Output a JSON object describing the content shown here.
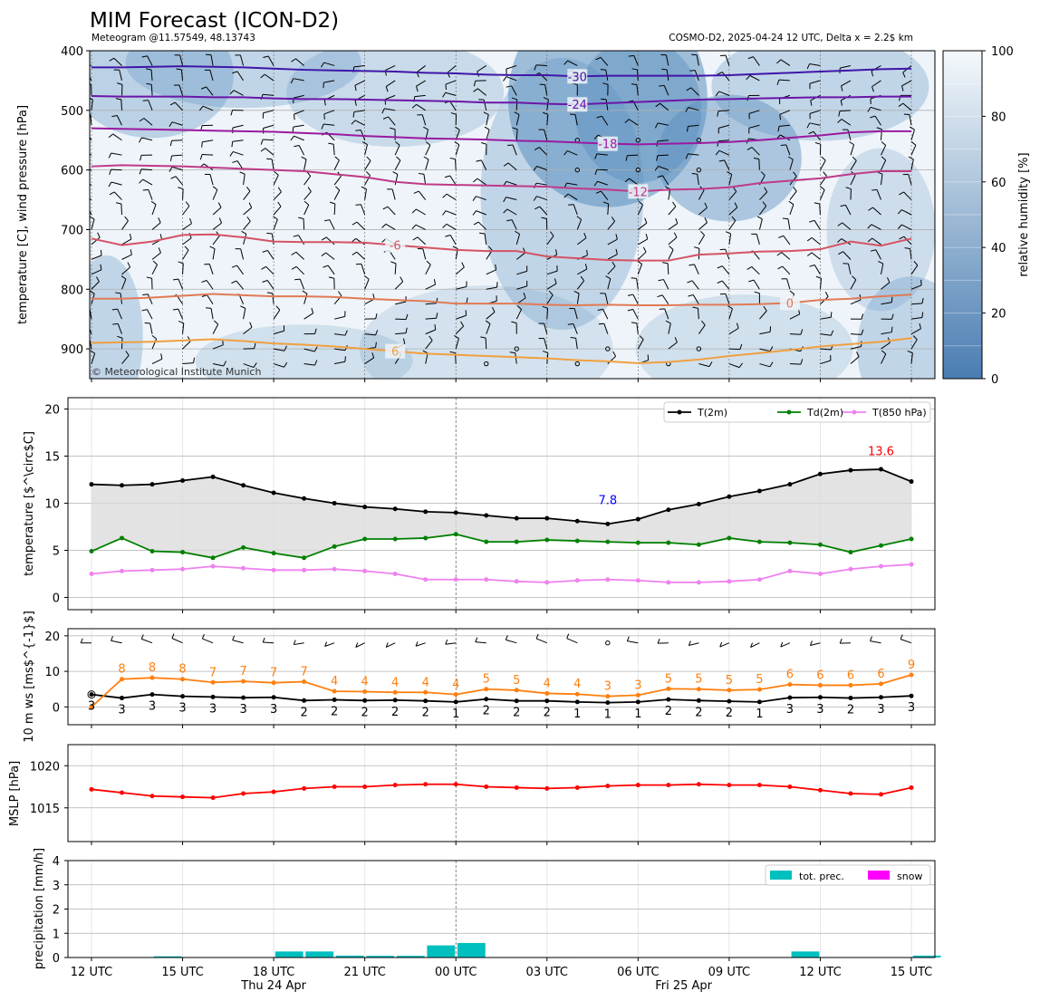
{
  "header": {
    "title": "MIM Forecast (ICON-D2)",
    "subtitle_left": "Meteogram @11.57549, 48.13743",
    "subtitle_right": "COSMO-D2, 2025-04-24 12 UTC, Delta x = 2.2$ km",
    "copyright": "© Meteorological Institute Munich"
  },
  "time_axis": {
    "x_range": [
      0,
      27
    ],
    "ticks": [
      {
        "x": 0,
        "label": "12 UTC"
      },
      {
        "x": 3,
        "label": "15 UTC"
      },
      {
        "x": 6,
        "label": "18 UTC"
      },
      {
        "x": 9,
        "label": "21 UTC"
      },
      {
        "x": 12,
        "label": "00 UTC"
      },
      {
        "x": 15,
        "label": "03 UTC"
      },
      {
        "x": 18,
        "label": "06 UTC"
      },
      {
        "x": 21,
        "label": "09 UTC"
      },
      {
        "x": 24,
        "label": "12 UTC"
      },
      {
        "x": 27,
        "label": "15 UTC"
      }
    ],
    "date_labels": [
      {
        "x": 6,
        "label": "Thu 24 Apr"
      },
      {
        "x": 19.5,
        "label": "Fri 25 Apr"
      }
    ],
    "day_boundary_x": 12
  },
  "chart_data": [
    {
      "type": "heatmap",
      "panel": "upper-air",
      "ylabel": "temperature [C], wind pressure [hPa]",
      "ylim": [
        950,
        400
      ],
      "y_inverted": true,
      "yticks": [
        400,
        500,
        600,
        700,
        800,
        900
      ],
      "colorbar": {
        "label": "relative humidity [%]",
        "range": [
          0,
          100
        ],
        "ticks": [
          0,
          20,
          40,
          60,
          80,
          100
        ]
      },
      "isotherms": [
        {
          "label": "-30",
          "color": "#3f16a8",
          "label_x": 16,
          "p": [
            428,
            428,
            427,
            426,
            427,
            428,
            430,
            432,
            433,
            434,
            435,
            437,
            438,
            440,
            441,
            441,
            443,
            442,
            442,
            442,
            442,
            441,
            439,
            437,
            435,
            433,
            431,
            430
          ]
        },
        {
          "label": "-24",
          "color": "#6a16a8",
          "label_x": 16,
          "p": [
            476,
            477,
            477,
            477,
            478,
            478,
            480,
            481,
            481,
            482,
            483,
            484,
            485,
            487,
            487,
            489,
            490,
            488,
            486,
            484,
            482,
            481,
            480,
            479,
            478,
            478,
            477,
            477
          ]
        },
        {
          "label": "-18",
          "color": "#9a1aa0",
          "label_x": 17,
          "p": [
            530,
            531,
            532,
            533,
            534,
            535,
            536,
            538,
            540,
            543,
            545,
            547,
            548,
            549,
            551,
            552,
            554,
            556,
            557,
            556,
            555,
            553,
            550,
            546,
            542,
            537,
            535,
            535
          ]
        },
        {
          "label": "-12",
          "color": "#bf3a88",
          "label_x": 18,
          "p": [
            594,
            592,
            593,
            594,
            596,
            598,
            600,
            602,
            607,
            612,
            620,
            624,
            625,
            626,
            627,
            628,
            631,
            633,
            636,
            633,
            632,
            629,
            622,
            618,
            614,
            607,
            602,
            602
          ]
        },
        {
          "label": "-6",
          "color": "#d45364",
          "label_x": 10,
          "p": [
            715,
            726,
            720,
            709,
            708,
            713,
            720,
            721,
            721,
            722,
            726,
            730,
            734,
            736,
            736,
            745,
            748,
            751,
            752,
            752,
            742,
            740,
            737,
            736,
            733,
            720,
            727,
            715
          ]
        },
        {
          "label": "0",
          "color": "#e07a55",
          "label_x": 23,
          "p": [
            816,
            816,
            814,
            811,
            808,
            810,
            812,
            812,
            813,
            816,
            818,
            820,
            824,
            824,
            824,
            826,
            827,
            826,
            827,
            827,
            826,
            826,
            825,
            823,
            818,
            816,
            812,
            809
          ]
        },
        {
          "label": "6",
          "color": "#f0a040",
          "label_x": 10,
          "p": [
            890,
            889,
            888,
            886,
            884,
            887,
            891,
            893,
            896,
            900,
            904,
            908,
            910,
            912,
            914,
            916,
            919,
            921,
            924,
            922,
            918,
            912,
            907,
            902,
            896,
            892,
            888,
            882
          ]
        }
      ]
    },
    {
      "type": "line",
      "panel": "temperature",
      "ylabel": "temperature [$^\\circ$C]",
      "ylim": [
        -1.3,
        21.2
      ],
      "yticks": [
        0,
        5,
        10,
        15,
        20
      ],
      "legend": "top-right",
      "series": [
        {
          "name": "T(2m)",
          "color": "#000000",
          "values": [
            12.0,
            11.9,
            12.0,
            12.4,
            12.8,
            11.9,
            11.1,
            10.5,
            10.0,
            9.6,
            9.4,
            9.1,
            9.0,
            8.7,
            8.4,
            8.4,
            8.1,
            7.8,
            8.3,
            9.3,
            9.9,
            10.7,
            11.3,
            12.0,
            13.1,
            13.5,
            13.6,
            12.3
          ]
        },
        {
          "name": "Td(2m)",
          "color": "#008000",
          "values": [
            4.9,
            6.3,
            4.9,
            4.8,
            4.2,
            5.3,
            4.7,
            4.2,
            5.4,
            6.2,
            6.2,
            6.3,
            6.7,
            5.9,
            5.9,
            6.1,
            6.0,
            5.9,
            5.8,
            5.8,
            5.6,
            6.3,
            5.9,
            5.8,
            5.6,
            4.8,
            5.5,
            6.2
          ]
        },
        {
          "name": "T(850 hPa)",
          "color": "#ee82ee",
          "values": [
            2.5,
            2.8,
            2.9,
            3.0,
            3.3,
            3.1,
            2.9,
            2.9,
            3.0,
            2.8,
            2.5,
            1.9,
            1.9,
            1.9,
            1.7,
            1.6,
            1.8,
            1.9,
            1.8,
            1.6,
            1.6,
            1.7,
            1.9,
            2.8,
            2.5,
            3.0,
            3.3,
            3.5
          ]
        }
      ],
      "annotations": [
        {
          "text": "7.8",
          "x": 17,
          "y": 9.9,
          "color": "#0000ff"
        },
        {
          "text": "13.6",
          "x": 26,
          "y": 15.1,
          "color": "#ff0000"
        }
      ]
    },
    {
      "type": "line",
      "panel": "wind",
      "ylabel": "10 m ws [ms$^{-1}$]",
      "ylim": [
        -5,
        22
      ],
      "yticks": [
        0,
        10,
        20
      ],
      "series": [
        {
          "name": "",
          "color": "#000000",
          "values": [
            3.5,
            2.5,
            3.5,
            3.0,
            2.8,
            2.6,
            2.7,
            1.8,
            2.0,
            1.8,
            1.9,
            1.7,
            1.4,
            2.2,
            1.7,
            1.7,
            1.4,
            1.2,
            1.4,
            2.1,
            1.8,
            1.6,
            1.4,
            2.6,
            2.7,
            2.5,
            2.7,
            3.1
          ]
        },
        {
          "name": "",
          "color": "#ff7f0e",
          "values": [
            0.0,
            7.8,
            8.2,
            7.8,
            6.9,
            7.2,
            6.8,
            7.1,
            4.4,
            4.3,
            4.1,
            4.1,
            3.5,
            5.0,
            4.7,
            3.8,
            3.6,
            3.0,
            3.3,
            5.1,
            5.0,
            4.7,
            4.9,
            6.3,
            6.1,
            6.1,
            6.5,
            9.0
          ]
        }
      ],
      "speed_labels": [
        "3",
        "3",
        "3",
        "3",
        "3",
        "3",
        "3",
        "2",
        "2",
        "2",
        "2",
        "2",
        "1",
        "2",
        "2",
        "2",
        "1",
        "1",
        "1",
        "2",
        "2",
        "2",
        "1",
        "3",
        "3",
        "2",
        "3",
        "3"
      ],
      "gust_labels": [
        "",
        "8",
        "8",
        "8",
        "7",
        "7",
        "7",
        "7",
        "4",
        "4",
        "4",
        "4",
        "4",
        "5",
        "5",
        "4",
        "4",
        "3",
        "3",
        "5",
        "5",
        "5",
        "5",
        "6",
        "6",
        "6",
        "6",
        "9"
      ]
    },
    {
      "type": "line",
      "panel": "mslp",
      "ylabel": "MSLP [hPa]",
      "ylim": [
        1011,
        1022.5
      ],
      "yticks": [
        1015,
        1020
      ],
      "series": [
        {
          "name": "",
          "color": "#ff0000",
          "values": [
            1017.2,
            1016.8,
            1016.4,
            1016.3,
            1016.2,
            1016.7,
            1016.9,
            1017.3,
            1017.5,
            1017.5,
            1017.7,
            1017.8,
            1017.8,
            1017.5,
            1017.4,
            1017.3,
            1017.4,
            1017.6,
            1017.7,
            1017.7,
            1017.8,
            1017.7,
            1017.7,
            1017.5,
            1017.1,
            1016.7,
            1016.6,
            1017.4
          ]
        }
      ]
    },
    {
      "type": "bar",
      "panel": "precipitation",
      "ylabel": "precipitation [mm/h]",
      "ylim": [
        0,
        4
      ],
      "yticks": [
        0,
        1,
        2,
        3,
        4
      ],
      "legend": "top-right",
      "series": [
        {
          "name": "tot. prec.",
          "color": "#00bfbf",
          "values": [
            0,
            0.02,
            0.05,
            0,
            0,
            0,
            0.25,
            0.25,
            0.08,
            0.07,
            0.07,
            0.5,
            0.6,
            0.02,
            0.02,
            0.02,
            0,
            0,
            0,
            0,
            0,
            0,
            0.02,
            0.25,
            0,
            0,
            0,
            0.08
          ]
        },
        {
          "name": "snow",
          "color": "#ff00ff",
          "values": [
            0,
            0,
            0,
            0,
            0,
            0,
            0,
            0,
            0,
            0,
            0,
            0,
            0,
            0,
            0,
            0,
            0,
            0,
            0,
            0,
            0,
            0,
            0,
            0,
            0,
            0,
            0,
            0
          ]
        }
      ]
    }
  ]
}
